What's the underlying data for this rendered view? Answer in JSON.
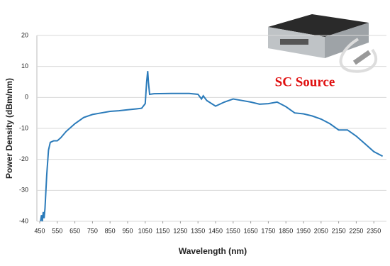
{
  "chart_data": {
    "type": "line",
    "x_label": "Wavelength (nm)",
    "y_label": "Power Density (dBm/nm)",
    "annotation": "SC Source",
    "xlim": [
      450,
      2400
    ],
    "ylim": [
      -40,
      20
    ],
    "xticks": [
      450,
      550,
      650,
      750,
      850,
      950,
      1050,
      1150,
      1250,
      1350,
      1450,
      1550,
      1650,
      1750,
      1850,
      1950,
      2050,
      2150,
      2250,
      2350
    ],
    "yticks": [
      -40,
      -30,
      -20,
      -10,
      0,
      10,
      20
    ],
    "grid": true,
    "color": "#2b7bba",
    "x": [
      455,
      460,
      465,
      470,
      475,
      480,
      490,
      500,
      510,
      530,
      550,
      570,
      600,
      650,
      700,
      750,
      800,
      850,
      900,
      950,
      1000,
      1030,
      1050,
      1058,
      1064,
      1068,
      1075,
      1100,
      1200,
      1300,
      1350,
      1370,
      1380,
      1400,
      1450,
      1500,
      1550,
      1600,
      1650,
      1700,
      1750,
      1800,
      1850,
      1900,
      1950,
      2000,
      2050,
      2100,
      2150,
      2200,
      2250,
      2300,
      2350,
      2400
    ],
    "values": [
      -40,
      -38,
      -40,
      -37,
      -39,
      -36,
      -25,
      -17,
      -14.5,
      -14,
      -14,
      -13,
      -11,
      -8.5,
      -6.5,
      -5.5,
      -5,
      -4.5,
      -4.3,
      -4,
      -3.7,
      -3.5,
      -2,
      5,
      8.5,
      5,
      1,
      1.2,
      1.3,
      1.3,
      1,
      -0.5,
      0.5,
      -1,
      -2.8,
      -1.5,
      -0.5,
      -1,
      -1.5,
      -2.2,
      -2,
      -1.5,
      -3,
      -5,
      -5.3,
      -6,
      -7,
      -8.5,
      -10.5,
      -10.5,
      -12.5,
      -15,
      -17.5,
      -19
    ]
  }
}
